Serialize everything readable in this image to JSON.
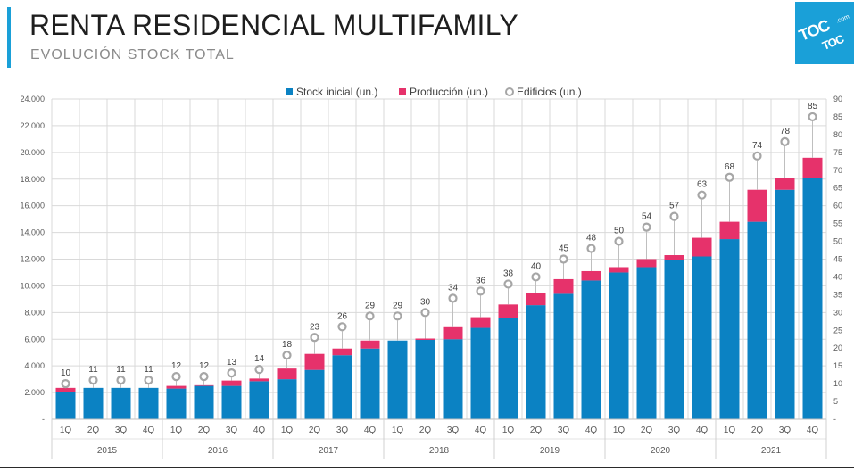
{
  "header": {
    "title": "RENTA RESIDENCIAL MULTIFAMILY",
    "subtitle": "EVOLUCIÓN STOCK TOTAL",
    "logo_main": "TOC",
    "logo_sub": "TOC",
    "logo_com": ".com"
  },
  "colors": {
    "stock": "#0b82c3",
    "produccion": "#e6326b",
    "edificios": "#a6a6a6",
    "grid": "#d9d9d9",
    "text": "#595959",
    "accent": "#1aa0d8"
  },
  "chart_data": {
    "type": "bar",
    "stacked": true,
    "categories": [
      "1Q",
      "2Q",
      "3Q",
      "4Q",
      "1Q",
      "2Q",
      "3Q",
      "4Q",
      "1Q",
      "2Q",
      "3Q",
      "4Q",
      "1Q",
      "2Q",
      "3Q",
      "4Q",
      "1Q",
      "2Q",
      "3Q",
      "4Q",
      "1Q",
      "2Q",
      "3Q",
      "4Q",
      "1Q",
      "2Q",
      "3Q",
      "4Q"
    ],
    "groups": [
      {
        "label": "2015",
        "count": 4
      },
      {
        "label": "2016",
        "count": 4
      },
      {
        "label": "2017",
        "count": 4
      },
      {
        "label": "2018",
        "count": 4
      },
      {
        "label": "2019",
        "count": 4
      },
      {
        "label": "2020",
        "count": 4
      },
      {
        "label": "2021",
        "count": 4
      }
    ],
    "series": [
      {
        "name": "Stock inicial (un.)",
        "axis": "left",
        "kind": "bar",
        "values": [
          2050,
          2350,
          2350,
          2350,
          2300,
          2500,
          2500,
          2850,
          3000,
          3700,
          4800,
          5300,
          5900,
          5950,
          6000,
          6850,
          7600,
          8550,
          9400,
          10400,
          11000,
          11400,
          11900,
          12200,
          13500,
          14800,
          17200,
          18100
        ]
      },
      {
        "name": "Producción (un.)",
        "axis": "left",
        "kind": "bar",
        "values": [
          300,
          0,
          0,
          0,
          200,
          50,
          400,
          200,
          800,
          1200,
          500,
          600,
          0,
          100,
          900,
          800,
          1000,
          900,
          1100,
          700,
          400,
          600,
          400,
          1400,
          1300,
          2400,
          900,
          1500
        ]
      },
      {
        "name": "Edificios (un.)",
        "axis": "right",
        "kind": "marker",
        "values": [
          10,
          11,
          11,
          11,
          12,
          12,
          13,
          14,
          18,
          23,
          26,
          29,
          29,
          30,
          34,
          36,
          38,
          40,
          45,
          48,
          50,
          54,
          57,
          63,
          68,
          74,
          78,
          85
        ]
      }
    ],
    "y_left": {
      "min": 0,
      "max": 24000,
      "ticks": [
        {
          "value": 0,
          "label": "-"
        },
        {
          "value": 2000,
          "label": "2.000"
        },
        {
          "value": 4000,
          "label": "4.000"
        },
        {
          "value": 6000,
          "label": "6.000"
        },
        {
          "value": 8000,
          "label": "8.000"
        },
        {
          "value": 10000,
          "label": "10.000"
        },
        {
          "value": 12000,
          "label": "12.000"
        },
        {
          "value": 14000,
          "label": "14.000"
        },
        {
          "value": 16000,
          "label": "16.000"
        },
        {
          "value": 18000,
          "label": "18.000"
        },
        {
          "value": 20000,
          "label": "20.000"
        },
        {
          "value": 22000,
          "label": "22.000"
        },
        {
          "value": 24000,
          "label": "24.000"
        }
      ]
    },
    "y_right": {
      "min": 0,
      "max": 90,
      "ticks": [
        {
          "value": 0,
          "label": "-"
        },
        {
          "value": 5,
          "label": "5"
        },
        {
          "value": 10,
          "label": "10"
        },
        {
          "value": 15,
          "label": "15"
        },
        {
          "value": 20,
          "label": "20"
        },
        {
          "value": 25,
          "label": "25"
        },
        {
          "value": 30,
          "label": "30"
        },
        {
          "value": 35,
          "label": "35"
        },
        {
          "value": 40,
          "label": "40"
        },
        {
          "value": 45,
          "label": "45"
        },
        {
          "value": 50,
          "label": "50"
        },
        {
          "value": 55,
          "label": "55"
        },
        {
          "value": 60,
          "label": "60"
        },
        {
          "value": 65,
          "label": "65"
        },
        {
          "value": 70,
          "label": "70"
        },
        {
          "value": 75,
          "label": "75"
        },
        {
          "value": 80,
          "label": "80"
        },
        {
          "value": 85,
          "label": "85"
        },
        {
          "value": 90,
          "label": "90"
        }
      ]
    },
    "legend_position": "top-center",
    "grid": true
  }
}
